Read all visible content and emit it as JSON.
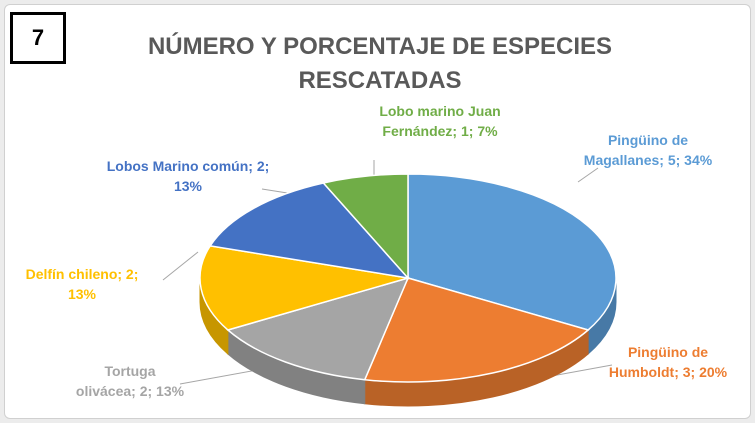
{
  "badge": "7",
  "chart_data": {
    "type": "pie3d",
    "title": "NÚMERO Y PORCENTAJE DE ESPECIES RESCATADAS",
    "values": [
      5,
      3,
      2,
      2,
      2,
      1
    ],
    "value_labels": [
      "Pingüino de Magallanes; 5; 34%",
      "Pingüino de Humboldt; 3; 20%",
      "Tortuga olivácea; 2; 13%",
      "Delfín chileno; 2; 13%",
      "Lobos Marino común; 2; 13%",
      "Lobo marino Juan Fernández; 1; 7%"
    ],
    "colors": [
      "#5b9bd5",
      "#ed7d31",
      "#a5a5a5",
      "#ffc000",
      "#4472c4",
      "#70ad47"
    ]
  }
}
